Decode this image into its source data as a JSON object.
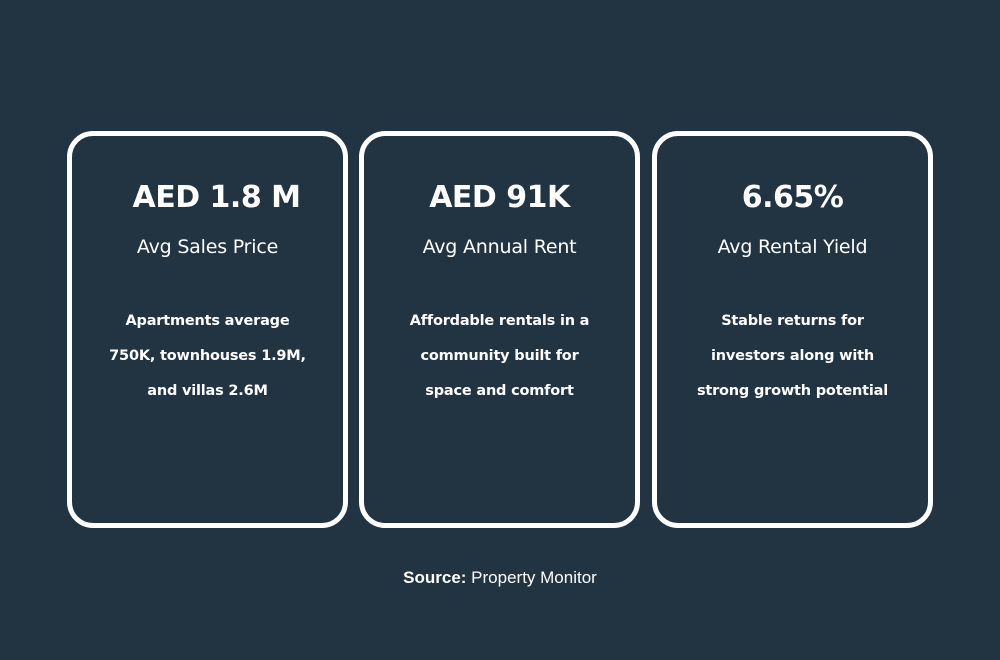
{
  "cards": [
    {
      "value": "AED 1.8 M",
      "label": "Avg Sales Price",
      "description_lines": [
        "Apartments average",
        "750K, townhouses 1.9M,",
        "and villas 2.6M"
      ]
    },
    {
      "value": "AED 91K",
      "label": "Avg Annual Rent",
      "description_lines": [
        "Affordable rentals in a",
        "community built for",
        "space and comfort"
      ]
    },
    {
      "value": "6.65%",
      "label": "Avg Rental Yield",
      "description_lines": [
        "Stable returns for",
        "investors along with",
        "strong growth potential"
      ]
    }
  ],
  "source": {
    "label": "Source:",
    "value": "Property Monitor"
  },
  "colors": {
    "background": "#223341",
    "foreground": "#ffffff"
  }
}
